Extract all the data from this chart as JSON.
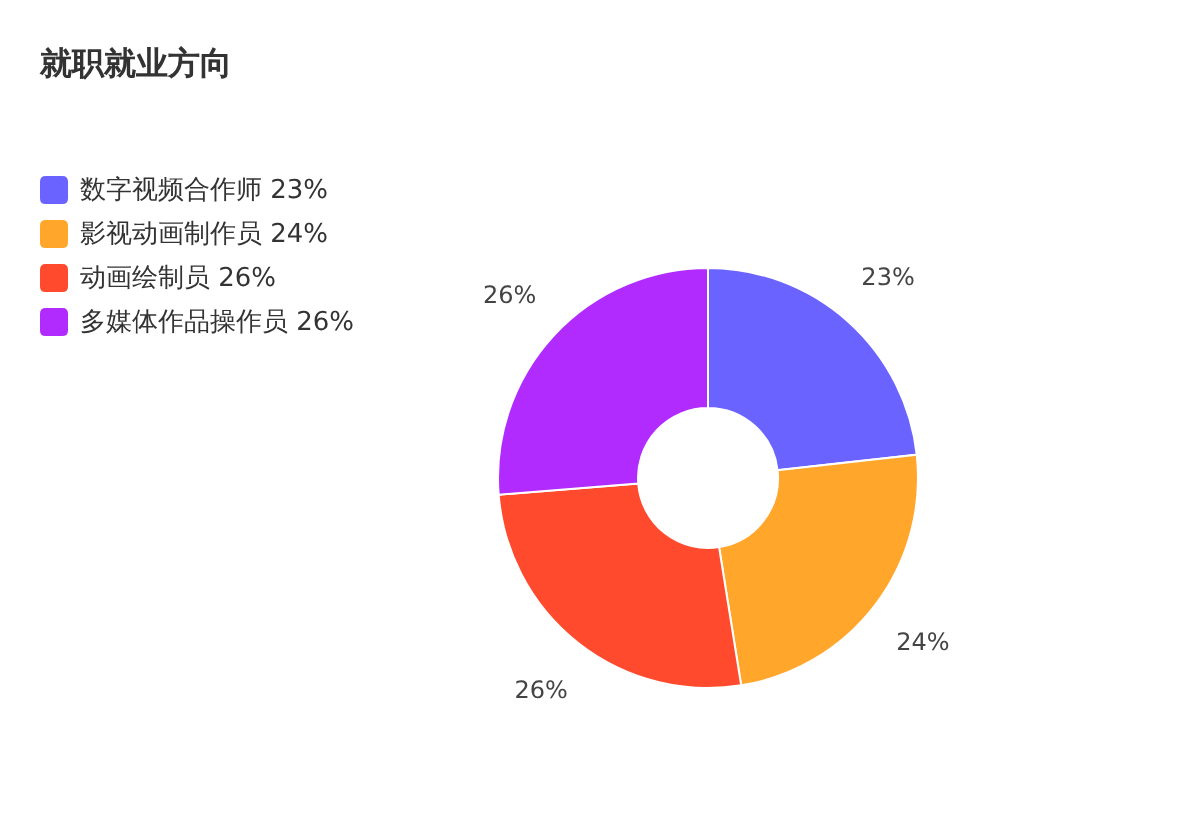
{
  "chart_data": {
    "type": "donut",
    "title": "就职就业方向",
    "categories": [
      "数字视频合作师",
      "影视动画制作员",
      "动画绘制员",
      "多媒体作品操作员"
    ],
    "values": [
      23,
      24,
      26,
      26
    ],
    "colors": [
      "#6b63ff",
      "#ffa62b",
      "#ff4a2d",
      "#b12bff"
    ],
    "value_labels": [
      "23%",
      "24%",
      "26%",
      "26%"
    ],
    "legend": "top left"
  }
}
